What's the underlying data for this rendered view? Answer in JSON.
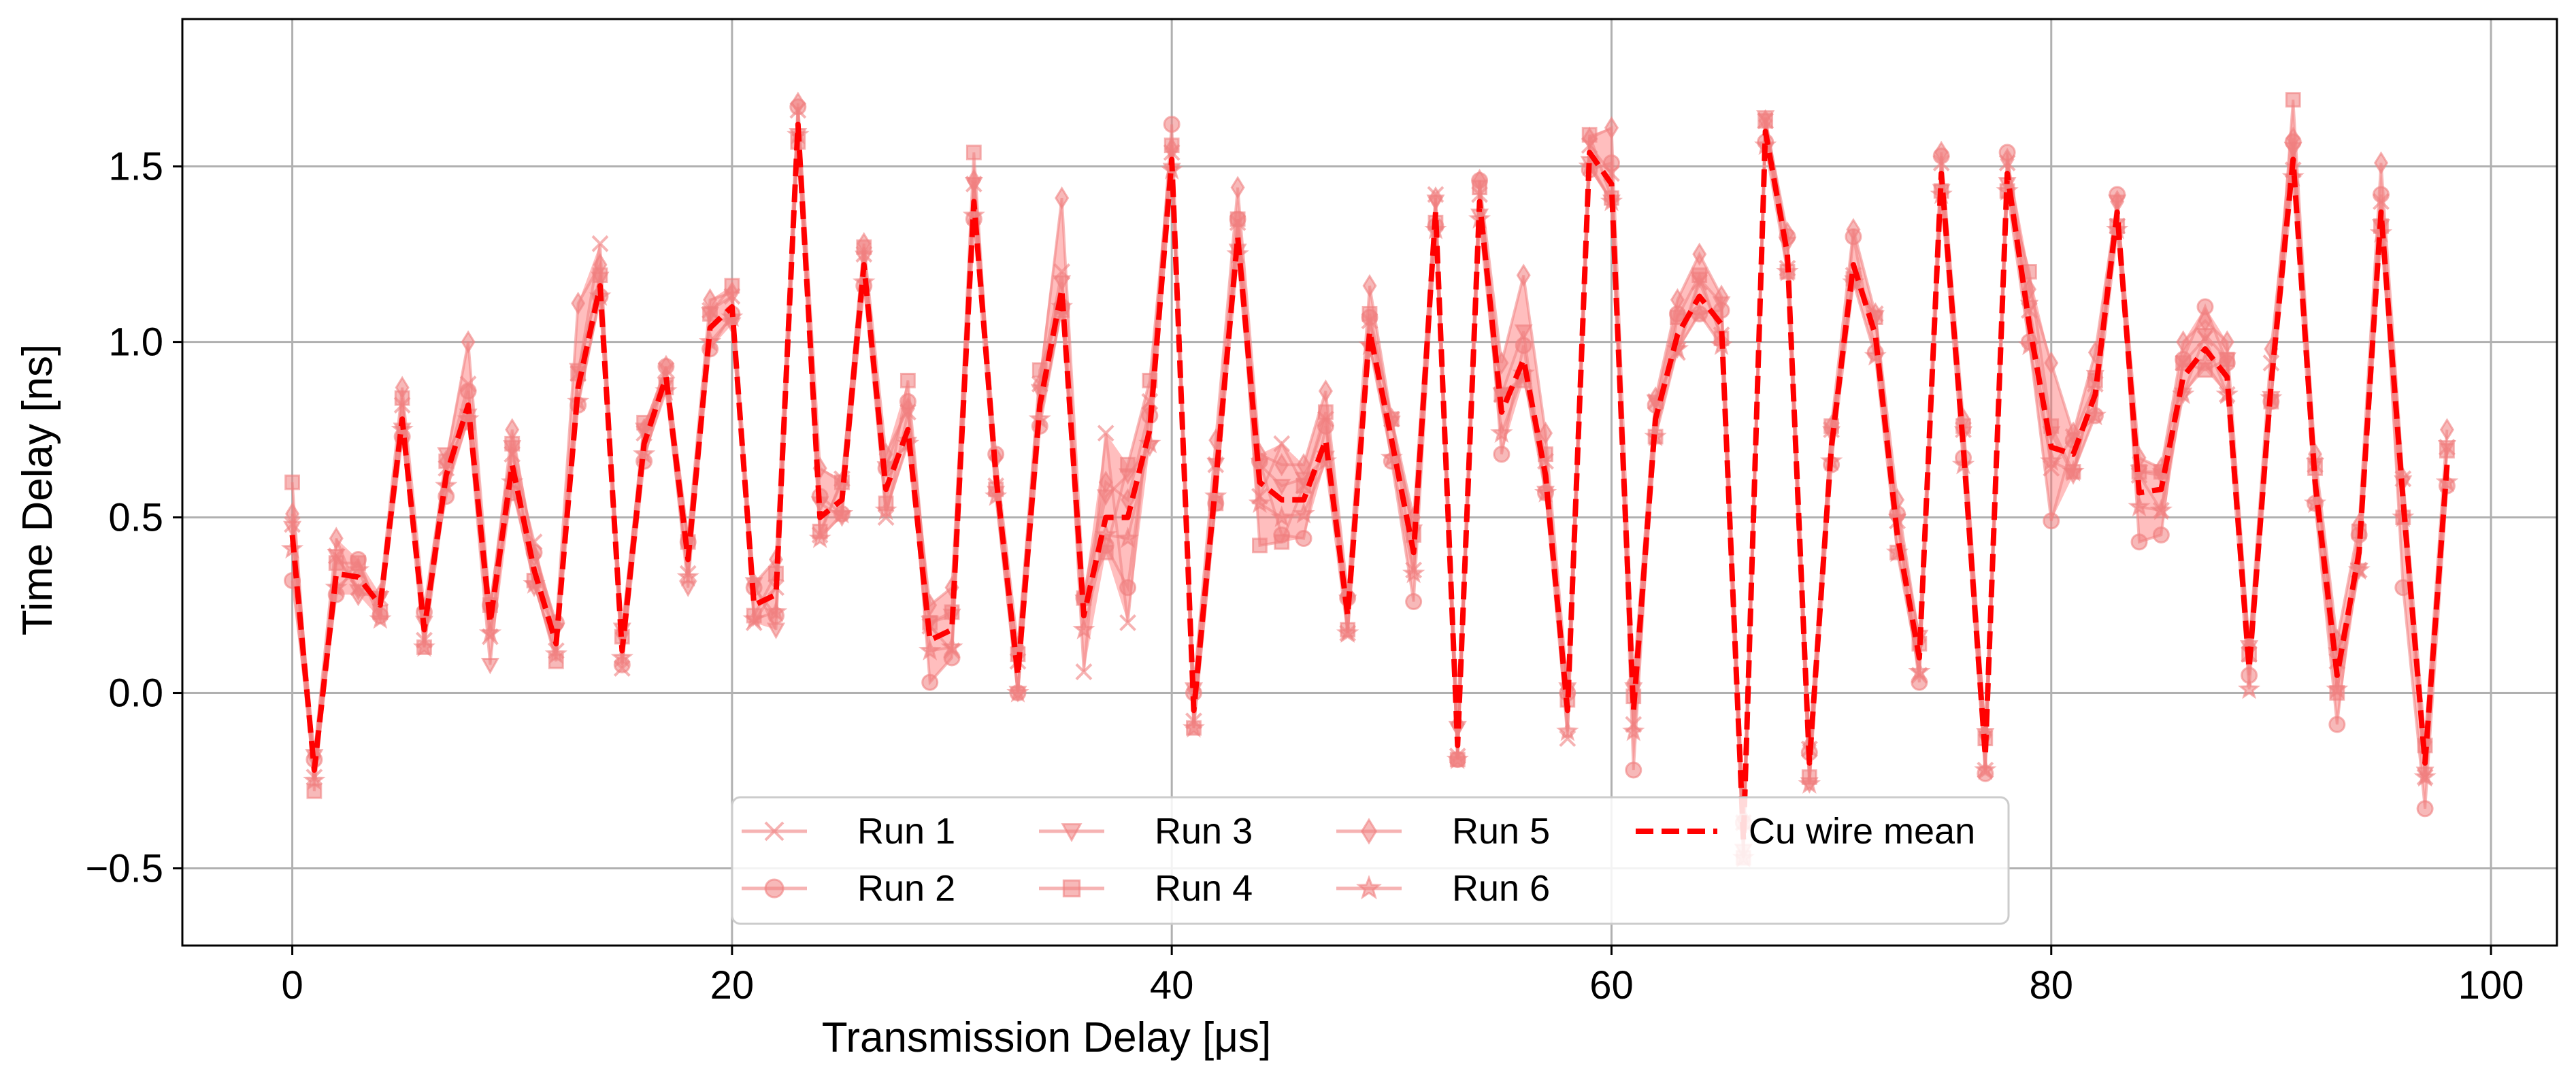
{
  "chart_data": {
    "type": "line",
    "xlabel": "Transmission Delay [μs]",
    "ylabel": "Time Delay [ns]",
    "xlim": [
      -5,
      103
    ],
    "ylim": [
      -0.72,
      1.92
    ],
    "xticks": [
      0,
      20,
      40,
      60,
      80,
      100
    ],
    "yticks": [
      -0.5,
      0.0,
      0.5,
      1.0,
      1.5
    ],
    "xtick_labels": [
      "0",
      "20",
      "40",
      "60",
      "80",
      "100"
    ],
    "ytick_labels": [
      "−0.5",
      "0.0",
      "0.5",
      "1.0",
      "1.5"
    ],
    "grid": true,
    "legend_position": "lower-center",
    "colors": {
      "runs": "#f08080",
      "mean": "#ff0000",
      "band": "#ff6e6e"
    },
    "mean": {
      "name": "Cu wire mean",
      "x": [
        0,
        1,
        2,
        3,
        4,
        5,
        6,
        7,
        8,
        9,
        10,
        11,
        12,
        13,
        14,
        15,
        16,
        17,
        18,
        19,
        20,
        21,
        22,
        23,
        24,
        25,
        26,
        27,
        28,
        29,
        30,
        31,
        32,
        33,
        34,
        35,
        36,
        37,
        38,
        39,
        40,
        41,
        42,
        43,
        44,
        45,
        46,
        47,
        48,
        49,
        50,
        51,
        52,
        53,
        54,
        55,
        56,
        57,
        58,
        59,
        60,
        61,
        62,
        63,
        64,
        65,
        66,
        67,
        68,
        69,
        70,
        71,
        72,
        73,
        74,
        75,
        76,
        77,
        78,
        79,
        80,
        81,
        82,
        83,
        84,
        85,
        86,
        87,
        88,
        89,
        90,
        91,
        92,
        93,
        94,
        95,
        96,
        97,
        98
      ],
      "y": [
        0.45,
        -0.22,
        0.34,
        0.33,
        0.25,
        0.78,
        0.18,
        0.62,
        0.82,
        0.2,
        0.65,
        0.35,
        0.14,
        0.87,
        1.16,
        0.12,
        0.71,
        0.9,
        0.38,
        1.04,
        1.1,
        0.25,
        0.28,
        1.62,
        0.5,
        0.55,
        1.22,
        0.58,
        0.75,
        0.15,
        0.18,
        1.4,
        0.62,
        0.05,
        0.82,
        1.15,
        0.22,
        0.5,
        0.5,
        0.75,
        1.52,
        -0.05,
        0.6,
        1.3,
        0.6,
        0.55,
        0.55,
        0.72,
        0.22,
        1.03,
        0.72,
        0.4,
        1.37,
        -0.15,
        1.4,
        0.8,
        0.95,
        0.62,
        -0.05,
        1.54,
        1.45,
        -0.05,
        0.78,
        1.02,
        1.13,
        1.05,
        -0.42,
        1.6,
        1.25,
        -0.2,
        0.7,
        1.22,
        1.02,
        0.45,
        0.1,
        1.48,
        0.7,
        -0.18,
        1.48,
        1.05,
        0.7,
        0.68,
        0.85,
        1.37,
        0.57,
        0.58,
        0.9,
        0.98,
        0.9,
        0.07,
        0.88,
        1.52,
        0.6,
        0.05,
        0.4,
        1.37,
        0.55,
        -0.2,
        0.65
      ]
    },
    "series": [
      {
        "name": "Run 1",
        "marker": "x",
        "offsets": [
          0.03,
          -0.02,
          0.05,
          -0.03,
          0.02,
          0.04,
          -0.03,
          0.02,
          0.06,
          -0.04,
          0.03,
          0.08,
          -0.02,
          0.04,
          0.12,
          -0.05,
          0.03,
          0.02,
          -0.04,
          0.05,
          0.03,
          -0.05,
          0.02,
          0.04,
          -0.05,
          0.06,
          0.03,
          -0.08,
          0.05,
          0.04,
          -0.06,
          0.05,
          -0.03,
          0.04,
          0.06,
          0.05,
          -0.16,
          0.24,
          -0.3,
          0.08,
          0.02,
          -0.03,
          0.05,
          0.04,
          -0.04,
          0.16,
          0.04,
          0.06,
          -0.05,
          0.03,
          0.06,
          -0.05,
          0.05,
          -0.03,
          0.02,
          0.05,
          -0.05,
          0.04,
          -0.08,
          0.02,
          0.03,
          -0.04,
          0.05,
          -0.05,
          0.04,
          -0.03,
          0.05,
          0.03,
          -0.04,
          0.04,
          0.05,
          -0.03,
          0.06,
          0.04,
          -0.05,
          0.03,
          0.05,
          -0.04,
          0.03,
          0.04,
          -0.06,
          0.05,
          0.03,
          -0.04,
          0.05,
          -0.06,
          0.04,
          0.03,
          -0.05,
          0.04,
          0.06,
          -0.03,
          0.05,
          0.04,
          -0.05,
          0.03,
          0.06,
          -0.04,
          0.05
        ]
      },
      {
        "name": "Run 2",
        "marker": "o",
        "offsets": [
          -0.13,
          0.03,
          -0.06,
          0.05,
          -0.03,
          -0.05,
          0.05,
          -0.06,
          0.04,
          0.05,
          -0.08,
          0.05,
          0.06,
          -0.05,
          -0.03,
          -0.04,
          -0.05,
          0.03,
          0.05,
          -0.06,
          -0.02,
          0.05,
          -0.06,
          0.05,
          0.06,
          -0.04,
          -0.06,
          0.06,
          0.08,
          -0.12,
          -0.08,
          -0.05,
          0.06,
          -0.05,
          -0.06,
          -0.05,
          0.05,
          -0.08,
          -0.2,
          0.04,
          0.1,
          0.05,
          -0.06,
          0.05,
          0.06,
          -0.1,
          -0.11,
          0.04,
          0.05,
          0.04,
          -0.06,
          -0.14,
          -0.04,
          -0.04,
          0.06,
          -0.12,
          0.04,
          -0.05,
          0.05,
          -0.05,
          0.06,
          -0.17,
          0.04,
          0.06,
          -0.05,
          0.04,
          0.05,
          -0.03,
          0.05,
          0.03,
          -0.05,
          0.08,
          -0.05,
          0.06,
          -0.07,
          0.05,
          -0.03,
          -0.05,
          0.06,
          -0.05,
          -0.21,
          0.04,
          -0.06,
          0.05,
          -0.14,
          -0.13,
          0.05,
          0.12,
          0.04,
          -0.02,
          -0.05,
          0.05,
          -0.06,
          -0.14,
          0.05,
          0.05,
          -0.25,
          -0.13,
          -0.06
        ]
      },
      {
        "name": "Run 3",
        "marker": "v",
        "offsets": [
          0.02,
          0.04,
          0.05,
          -0.04,
          0.02,
          -0.03,
          0.02,
          0.06,
          -0.03,
          -0.12,
          0.05,
          -0.05,
          0.04,
          0.05,
          0.02,
          0.06,
          0.04,
          -0.02,
          -0.08,
          0.04,
          -0.05,
          0.06,
          -0.1,
          -0.03,
          0.04,
          -0.05,
          0.02,
          0.06,
          -0.04,
          0.05,
          0.04,
          0.05,
          -0.05,
          -0.05,
          0.04,
          0.02,
          0.04,
          0.06,
          0.12,
          -0.05,
          -0.03,
          0.06,
          0.05,
          -0.04,
          0.05,
          0.04,
          0.06,
          -0.05,
          0.04,
          -0.05,
          0.05,
          0.06,
          0.03,
          0.05,
          -0.04,
          0.05,
          0.08,
          -0.05,
          0.06,
          -0.03,
          -0.05,
          0.06,
          0.05,
          -0.04,
          0.05,
          0.06,
          -0.03,
          0.04,
          0.03,
          -0.06,
          0.04,
          -0.05,
          0.05,
          0.04,
          0.06,
          -0.05,
          0.04,
          0.06,
          -0.03,
          0.05,
          0.04,
          -0.06,
          0.05,
          0.03,
          0.06,
          0.04,
          -0.05,
          0.04,
          0.05,
          0.06,
          -0.04,
          0.03,
          0.05,
          0.06,
          -0.05,
          -0.04,
          0.05,
          -0.03,
          0.05
        ]
      },
      {
        "name": "Run 4",
        "marker": "s",
        "offsets": [
          0.15,
          -0.06,
          0.03,
          0.04,
          -0.02,
          0.06,
          -0.05,
          0.04,
          -0.05,
          0.05,
          0.06,
          -0.03,
          -0.05,
          0.04,
          0.03,
          0.04,
          0.06,
          -0.03,
          0.05,
          0.04,
          0.06,
          -0.03,
          0.06,
          -0.05,
          -0.04,
          0.05,
          0.05,
          -0.04,
          0.14,
          0.05,
          0.05,
          0.14,
          -0.04,
          0.06,
          0.1,
          -0.06,
          0.05,
          -0.1,
          0.15,
          0.14,
          0.04,
          -0.05,
          -0.06,
          0.05,
          -0.18,
          -0.12,
          0.04,
          0.08,
          -0.04,
          0.05,
          0.06,
          0.05,
          -0.03,
          -0.04,
          0.04,
          0.05,
          -0.06,
          0.06,
          0.03,
          0.05,
          -0.04,
          0.04,
          -0.05,
          0.05,
          0.06,
          -0.04,
          -0.05,
          0.03,
          -0.05,
          -0.04,
          0.06,
          -0.04,
          0.05,
          -0.05,
          0.04,
          -0.05,
          0.06,
          0.05,
          -0.05,
          0.15,
          0.06,
          -0.05,
          0.04,
          -0.04,
          0.06,
          0.05,
          0.04,
          -0.06,
          0.05,
          0.04,
          -0.05,
          0.17,
          0.04,
          -0.05,
          0.06,
          -0.04,
          -0.05,
          0.05,
          0.04
        ]
      },
      {
        "name": "Run 5",
        "marker": "d",
        "offsets": [
          0.06,
          0.04,
          0.1,
          -0.05,
          0.03,
          0.09,
          0.06,
          0.04,
          0.18,
          0.04,
          0.1,
          0.04,
          0.05,
          0.24,
          0.06,
          0.05,
          0.04,
          0.03,
          0.06,
          0.08,
          0.04,
          0.06,
          0.1,
          0.06,
          0.14,
          0.05,
          0.06,
          0.1,
          0.06,
          0.1,
          0.12,
          0.06,
          0.05,
          0.08,
          0.06,
          0.26,
          0.06,
          0.1,
          0.05,
          0.06,
          0.03,
          0.06,
          0.12,
          0.14,
          0.08,
          0.1,
          0.1,
          0.14,
          0.06,
          0.13,
          0.06,
          0.1,
          0.04,
          0.06,
          0.06,
          0.14,
          0.24,
          0.12,
          0.06,
          0.04,
          0.16,
          0.08,
          0.06,
          0.1,
          0.12,
          0.08,
          0.06,
          0.03,
          0.06,
          0.05,
          0.06,
          0.1,
          0.06,
          0.1,
          0.05,
          0.06,
          0.08,
          0.06,
          0.04,
          0.1,
          0.24,
          0.06,
          0.12,
          0.03,
          0.1,
          0.06,
          0.1,
          0.08,
          0.1,
          0.06,
          0.1,
          0.06,
          0.08,
          0.1,
          0.08,
          0.14,
          0.06,
          0.06,
          0.1
        ]
      },
      {
        "name": "Run 6",
        "marker": "*",
        "offsets": [
          -0.04,
          -0.03,
          -0.04,
          0.02,
          -0.04,
          -0.03,
          -0.05,
          -0.03,
          -0.04,
          -0.03,
          -0.05,
          -0.04,
          -0.03,
          -0.04,
          -0.03,
          -0.02,
          -0.03,
          -0.04,
          -0.05,
          -0.04,
          -0.03,
          -0.04,
          -0.05,
          -0.03,
          -0.06,
          -0.04,
          -0.05,
          -0.06,
          -0.04,
          -0.03,
          -0.05,
          -0.04,
          -0.06,
          -0.05,
          -0.04,
          -0.05,
          -0.04,
          -0.05,
          -0.06,
          -0.04,
          -0.03,
          -0.05,
          -0.04,
          -0.05,
          -0.06,
          -0.05,
          -0.04,
          -0.06,
          -0.05,
          -0.04,
          -0.05,
          -0.06,
          -0.05,
          -0.04,
          -0.05,
          -0.06,
          -0.04,
          -0.05,
          -0.06,
          -0.04,
          -0.05,
          -0.06,
          -0.05,
          -0.04,
          -0.05,
          -0.06,
          -0.05,
          -0.04,
          -0.05,
          -0.06,
          -0.04,
          -0.05,
          -0.06,
          -0.05,
          -0.04,
          -0.06,
          -0.05,
          -0.04,
          -0.05,
          -0.06,
          -0.04,
          -0.05,
          -0.06,
          -0.05,
          -0.04,
          -0.06,
          -0.05,
          -0.04,
          -0.05,
          -0.06,
          -0.04,
          -0.05,
          -0.06,
          -0.04,
          -0.05,
          -0.06,
          -0.05,
          -0.04,
          -0.05
        ]
      }
    ]
  }
}
